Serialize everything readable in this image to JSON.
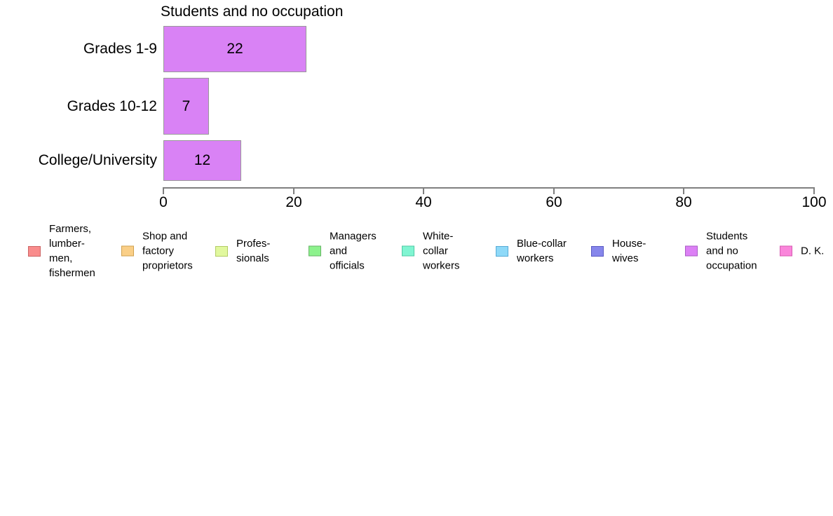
{
  "chart_data": {
    "type": "bar",
    "orientation": "horizontal",
    "title": "Students and no occupation",
    "categories": [
      "Grades 1-9",
      "Grades 10-12",
      "College/University"
    ],
    "values": [
      22,
      7,
      12
    ],
    "bar_color": "#d982f5",
    "bar_border_color": "#999999",
    "xlim": [
      0,
      100
    ],
    "x_ticks": [
      0,
      20,
      40,
      60,
      80,
      100
    ],
    "grid": false,
    "legend_position": "bottom",
    "legend": [
      {
        "label": "Farmers, lumber-men, fishermen",
        "text": "Farmers,\nlumber-\nmen,\nfishermen",
        "fill": "#f98c8c",
        "border": "#cc6666"
      },
      {
        "label": "Shop and factory proprietors",
        "text": "Shop and\nfactory\nproprietors",
        "fill": "#facf87",
        "border": "#cfa14f"
      },
      {
        "label": "Professionals",
        "text": "Profes-\nsionals",
        "fill": "#e1f89e",
        "border": "#b3cc66"
      },
      {
        "label": "Managers and officials",
        "text": "Managers\nand\nofficials",
        "fill": "#8df28d",
        "border": "#66b366"
      },
      {
        "label": "White-collar workers",
        "text": "White-\ncollar\nworkers",
        "fill": "#80f5d2",
        "border": "#4fc9a4"
      },
      {
        "label": "Blue-collar workers",
        "text": "Blue-collar\nworkers",
        "fill": "#8ed9f8",
        "border": "#58abd6"
      },
      {
        "label": "Housewives",
        "text": "House-\nwives",
        "fill": "#8686eb",
        "border": "#5b5bc4"
      },
      {
        "label": "Students and no occupation",
        "text": "Students\nand no\noccupation",
        "fill": "#dc80f5",
        "border": "#a95cc4"
      },
      {
        "label": "D. K.",
        "text": "D. K.",
        "fill": "#fa85db",
        "border": "#d65bb2"
      }
    ]
  }
}
